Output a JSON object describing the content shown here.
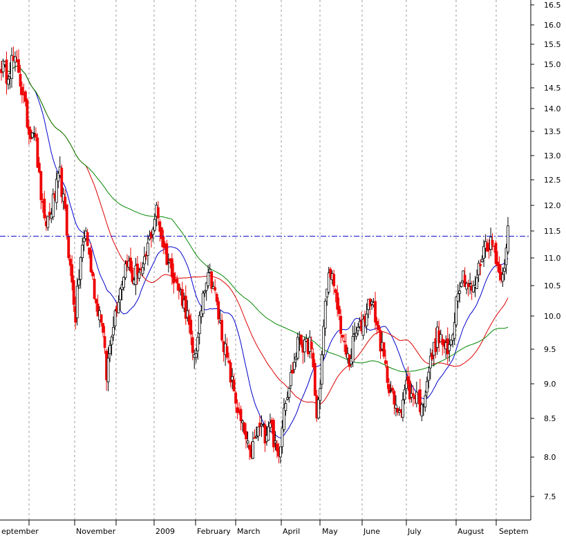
{
  "chart_data": {
    "type": "candlestick",
    "x_tick_labels": [
      "eptember",
      "November",
      "2009",
      "February",
      "March",
      "April",
      "May",
      "June",
      "July",
      "August",
      "Septem"
    ],
    "y_tick_labels": [
      "16.5",
      "16.0",
      "15.5",
      "15.0",
      "14.5",
      "14.0",
      "13.5",
      "13.0",
      "12.5",
      "12.0",
      "11.5",
      "11.0",
      "10.5",
      "10.0",
      "9.5",
      "9.0",
      "8.5",
      "8.0",
      "7.5"
    ],
    "ylim": [
      7.2,
      16.6
    ],
    "y_scale": "log",
    "grid": "vertical dashed lines at month boundaries",
    "reference_line": {
      "value": 11.4,
      "style": "dash-dot",
      "color": "#0000cc"
    },
    "colors": {
      "up": "#000000",
      "down": "#ee0000",
      "ma_fast": "#0000cc",
      "ma_mid": "#dd0000",
      "ma_slow": "#008800",
      "grid": "#999999"
    },
    "anchors": [
      {
        "i": 0,
        "c": 15.0
      },
      {
        "i": 3,
        "c": 14.8
      },
      {
        "i": 6,
        "c": 15.1
      },
      {
        "i": 10,
        "c": 14.9
      },
      {
        "i": 13,
        "c": 14.2
      },
      {
        "i": 16,
        "c": 13.5
      },
      {
        "i": 19,
        "c": 13.6
      },
      {
        "i": 22,
        "c": 12.5
      },
      {
        "i": 25,
        "c": 11.6
      },
      {
        "i": 28,
        "c": 11.8
      },
      {
        "i": 31,
        "c": 12.2
      },
      {
        "i": 34,
        "c": 12.6
      },
      {
        "i": 37,
        "c": 11.8
      },
      {
        "i": 40,
        "c": 10.8
      },
      {
        "i": 43,
        "c": 10.0
      },
      {
        "i": 46,
        "c": 11.0
      },
      {
        "i": 49,
        "c": 11.5
      },
      {
        "i": 52,
        "c": 10.8
      },
      {
        "i": 55,
        "c": 10.2
      },
      {
        "i": 58,
        "c": 10.0
      },
      {
        "i": 61,
        "c": 9.1
      },
      {
        "i": 64,
        "c": 9.8
      },
      {
        "i": 67,
        "c": 10.2
      },
      {
        "i": 70,
        "c": 10.6
      },
      {
        "i": 73,
        "c": 11.0
      },
      {
        "i": 76,
        "c": 10.6
      },
      {
        "i": 79,
        "c": 10.8
      },
      {
        "i": 82,
        "c": 10.7
      },
      {
        "i": 85,
        "c": 11.2
      },
      {
        "i": 88,
        "c": 11.6
      },
      {
        "i": 90,
        "c": 11.9
      },
      {
        "i": 93,
        "c": 11.4
      },
      {
        "i": 96,
        "c": 11.0
      },
      {
        "i": 99,
        "c": 10.8
      },
      {
        "i": 102,
        "c": 10.5
      },
      {
        "i": 105,
        "c": 10.3
      },
      {
        "i": 108,
        "c": 10.0
      },
      {
        "i": 111,
        "c": 9.4
      },
      {
        "i": 114,
        "c": 9.6
      },
      {
        "i": 117,
        "c": 10.4
      },
      {
        "i": 120,
        "c": 10.8
      },
      {
        "i": 123,
        "c": 10.5
      },
      {
        "i": 126,
        "c": 10.0
      },
      {
        "i": 129,
        "c": 9.6
      },
      {
        "i": 132,
        "c": 9.2
      },
      {
        "i": 135,
        "c": 8.9
      },
      {
        "i": 138,
        "c": 8.5
      },
      {
        "i": 141,
        "c": 8.3
      },
      {
        "i": 144,
        "c": 8.0
      },
      {
        "i": 147,
        "c": 8.2
      },
      {
        "i": 150,
        "c": 8.4
      },
      {
        "i": 153,
        "c": 8.3
      },
      {
        "i": 156,
        "c": 8.5
      },
      {
        "i": 159,
        "c": 8.1
      },
      {
        "i": 161,
        "c": 8.0
      },
      {
        "i": 164,
        "c": 8.7
      },
      {
        "i": 167,
        "c": 9.0
      },
      {
        "i": 170,
        "c": 9.3
      },
      {
        "i": 173,
        "c": 9.7
      },
      {
        "i": 176,
        "c": 9.5
      },
      {
        "i": 179,
        "c": 9.6
      },
      {
        "i": 181,
        "c": 9.2
      },
      {
        "i": 183,
        "c": 8.5
      },
      {
        "i": 185,
        "c": 9.0
      },
      {
        "i": 187,
        "c": 9.8
      },
      {
        "i": 189,
        "c": 10.5
      },
      {
        "i": 191,
        "c": 10.8
      },
      {
        "i": 193,
        "c": 10.4
      },
      {
        "i": 196,
        "c": 10.0
      },
      {
        "i": 199,
        "c": 9.5
      },
      {
        "i": 202,
        "c": 9.3
      },
      {
        "i": 205,
        "c": 9.7
      },
      {
        "i": 208,
        "c": 9.8
      },
      {
        "i": 211,
        "c": 10.0
      },
      {
        "i": 214,
        "c": 10.3
      },
      {
        "i": 217,
        "c": 10.0
      },
      {
        "i": 220,
        "c": 9.6
      },
      {
        "i": 223,
        "c": 9.2
      },
      {
        "i": 226,
        "c": 8.9
      },
      {
        "i": 229,
        "c": 8.6
      },
      {
        "i": 232,
        "c": 8.7
      },
      {
        "i": 235,
        "c": 9.0
      },
      {
        "i": 238,
        "c": 8.8
      },
      {
        "i": 241,
        "c": 8.9
      },
      {
        "i": 244,
        "c": 8.6
      },
      {
        "i": 247,
        "c": 9.1
      },
      {
        "i": 250,
        "c": 9.4
      },
      {
        "i": 253,
        "c": 9.7
      },
      {
        "i": 256,
        "c": 9.6
      },
      {
        "i": 259,
        "c": 9.4
      },
      {
        "i": 262,
        "c": 9.8
      },
      {
        "i": 265,
        "c": 10.5
      },
      {
        "i": 268,
        "c": 10.7
      },
      {
        "i": 271,
        "c": 10.5
      },
      {
        "i": 274,
        "c": 10.4
      },
      {
        "i": 277,
        "c": 10.8
      },
      {
        "i": 280,
        "c": 11.2
      },
      {
        "i": 283,
        "c": 11.3
      },
      {
        "i": 286,
        "c": 11.2
      },
      {
        "i": 289,
        "c": 10.7
      },
      {
        "i": 291,
        "c": 10.8
      },
      {
        "i": 293,
        "c": 11.1
      },
      {
        "i": 294,
        "c": 11.5
      }
    ]
  }
}
